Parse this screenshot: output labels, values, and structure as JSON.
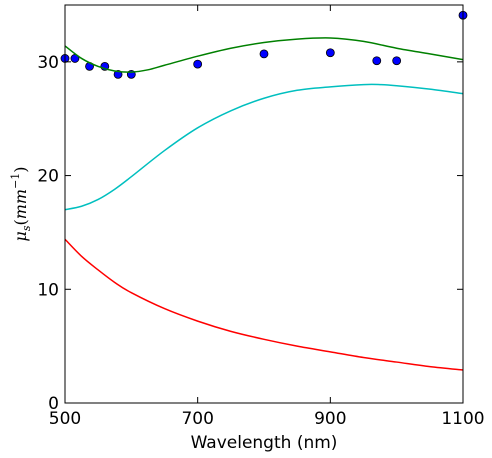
{
  "chart_data": {
    "type": "line",
    "title": "",
    "xlabel": "Wavelength (nm)",
    "ylabel": "μs(mm⁻¹)",
    "ylabel_parts": {
      "mu": "μ",
      "sub": "s",
      "open": "(",
      "unit": "mm",
      "sup": "−1",
      "close": ")"
    },
    "xlim": [
      500,
      1100
    ],
    "ylim": [
      0,
      35
    ],
    "xticks": [
      500,
      700,
      900,
      1100
    ],
    "yticks": [
      0,
      10,
      20,
      30
    ],
    "grid": false,
    "series": [
      {
        "kind": "scatter",
        "color": "#0000ff",
        "x": [
          500,
          515,
          537,
          560,
          580,
          600,
          700,
          800,
          900,
          970,
          1000,
          1100
        ],
        "y": [
          30.3,
          30.3,
          29.6,
          29.6,
          28.9,
          28.9,
          29.8,
          30.7,
          30.8,
          30.1,
          30.1,
          34.1
        ]
      },
      {
        "kind": "line",
        "color": "#008000",
        "x": [
          500,
          525,
          550,
          575,
          600,
          625,
          650,
          700,
          750,
          800,
          850,
          900,
          950,
          1000,
          1050,
          1100
        ],
        "y": [
          31.4,
          30.3,
          29.6,
          29.2,
          29.1,
          29.3,
          29.7,
          30.5,
          31.2,
          31.7,
          32.0,
          32.1,
          31.8,
          31.2,
          30.7,
          30.2
        ]
      },
      {
        "kind": "line",
        "color": "#00bfbf",
        "x": [
          500,
          525,
          550,
          575,
          600,
          650,
          700,
          750,
          800,
          850,
          900,
          950,
          975,
          1000,
          1050,
          1100
        ],
        "y": [
          17.0,
          17.3,
          17.9,
          18.8,
          19.9,
          22.2,
          24.2,
          25.7,
          26.8,
          27.5,
          27.8,
          28.0,
          28.0,
          27.9,
          27.6,
          27.2
        ]
      },
      {
        "kind": "line",
        "color": "#ff0000",
        "x": [
          500,
          525,
          550,
          575,
          600,
          650,
          700,
          750,
          800,
          850,
          900,
          950,
          1000,
          1050,
          1100
        ],
        "y": [
          14.4,
          12.9,
          11.7,
          10.6,
          9.7,
          8.3,
          7.2,
          6.3,
          5.6,
          5.0,
          4.5,
          4.0,
          3.6,
          3.2,
          2.9
        ]
      }
    ]
  }
}
